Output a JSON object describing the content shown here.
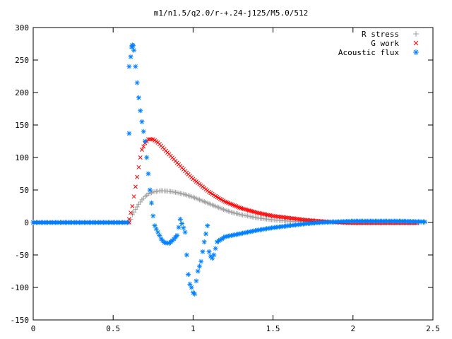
{
  "chart_data": {
    "type": "scatter",
    "title": "m1/n1.5/q2.0/r-+.24-j125/M5.0/512",
    "xlabel": "",
    "ylabel": "",
    "xlim": [
      0,
      2.5
    ],
    "ylim": [
      -150,
      300
    ],
    "x_ticks": [
      0,
      0.5,
      1,
      1.5,
      2,
      2.5
    ],
    "x_tick_labels": [
      "0",
      "0.5",
      "1",
      "1.5",
      "2",
      "2.5"
    ],
    "y_ticks": [
      -150,
      -100,
      -50,
      0,
      50,
      100,
      150,
      200,
      250,
      300
    ],
    "y_tick_labels": [
      "-150",
      "-100",
      "-50",
      "0",
      "50",
      "100",
      "150",
      "200",
      "250",
      "300"
    ],
    "grid": false,
    "legend_position": "top-right",
    "series": [
      {
        "name": "R stress",
        "marker": "+",
        "color": "#a0a0a0",
        "points": [
          [
            0.0,
            0
          ],
          [
            0.3,
            0
          ],
          [
            0.6,
            0
          ],
          [
            0.61,
            5
          ],
          [
            0.62,
            12
          ],
          [
            0.64,
            20
          ],
          [
            0.66,
            28
          ],
          [
            0.68,
            35
          ],
          [
            0.7,
            40
          ],
          [
            0.72,
            44
          ],
          [
            0.75,
            47
          ],
          [
            0.8,
            49
          ],
          [
            0.85,
            48
          ],
          [
            0.9,
            46
          ],
          [
            0.95,
            43
          ],
          [
            1.0,
            39
          ],
          [
            1.05,
            34
          ],
          [
            1.1,
            29
          ],
          [
            1.15,
            24
          ],
          [
            1.2,
            19
          ],
          [
            1.25,
            15
          ],
          [
            1.3,
            12
          ],
          [
            1.4,
            7
          ],
          [
            1.5,
            4
          ],
          [
            1.6,
            2
          ],
          [
            1.8,
            1
          ],
          [
            2.0,
            1
          ],
          [
            2.2,
            1
          ],
          [
            2.45,
            0
          ]
        ]
      },
      {
        "name": "G work",
        "marker": "x",
        "color": "#ff0000",
        "points": [
          [
            0.0,
            0
          ],
          [
            0.3,
            0
          ],
          [
            0.6,
            0
          ],
          [
            0.6,
            5
          ],
          [
            0.61,
            15
          ],
          [
            0.62,
            25
          ],
          [
            0.63,
            40
          ],
          [
            0.64,
            55
          ],
          [
            0.65,
            70
          ],
          [
            0.66,
            85
          ],
          [
            0.67,
            100
          ],
          [
            0.68,
            112
          ],
          [
            0.7,
            122
          ],
          [
            0.72,
            128
          ],
          [
            0.75,
            128
          ],
          [
            0.78,
            123
          ],
          [
            0.8,
            118
          ],
          [
            0.85,
            105
          ],
          [
            0.9,
            92
          ],
          [
            0.95,
            79
          ],
          [
            1.0,
            67
          ],
          [
            1.05,
            57
          ],
          [
            1.1,
            47
          ],
          [
            1.15,
            39
          ],
          [
            1.2,
            32
          ],
          [
            1.3,
            22
          ],
          [
            1.4,
            15
          ],
          [
            1.5,
            10
          ],
          [
            1.6,
            7
          ],
          [
            1.7,
            4
          ],
          [
            1.8,
            2
          ],
          [
            1.9,
            0
          ],
          [
            2.0,
            -1
          ],
          [
            2.2,
            -1
          ],
          [
            2.4,
            -1
          ]
        ]
      },
      {
        "name": "Acoustic flux",
        "marker": "*",
        "color": "#0080ff",
        "points": [
          [
            0.0,
            0
          ],
          [
            0.3,
            0
          ],
          [
            0.59,
            0
          ],
          [
            0.6,
            137
          ],
          [
            0.6,
            240
          ],
          [
            0.61,
            255
          ],
          [
            0.615,
            270
          ],
          [
            0.62,
            273
          ],
          [
            0.625,
            272
          ],
          [
            0.63,
            265
          ],
          [
            0.64,
            240
          ],
          [
            0.65,
            215
          ],
          [
            0.66,
            192
          ],
          [
            0.67,
            172
          ],
          [
            0.68,
            155
          ],
          [
            0.69,
            140
          ],
          [
            0.7,
            125
          ],
          [
            0.71,
            100
          ],
          [
            0.72,
            75
          ],
          [
            0.73,
            50
          ],
          [
            0.74,
            30
          ],
          [
            0.75,
            10
          ],
          [
            0.76,
            -5
          ],
          [
            0.78,
            -15
          ],
          [
            0.8,
            -25
          ],
          [
            0.82,
            -31
          ],
          [
            0.85,
            -32
          ],
          [
            0.87,
            -28
          ],
          [
            0.9,
            -20
          ],
          [
            0.92,
            5
          ],
          [
            0.95,
            -15
          ],
          [
            0.96,
            -50
          ],
          [
            0.97,
            -80
          ],
          [
            0.98,
            -95
          ],
          [
            0.99,
            -100
          ],
          [
            1.0,
            -108
          ],
          [
            1.01,
            -110
          ],
          [
            1.02,
            -90
          ],
          [
            1.03,
            -75
          ],
          [
            1.05,
            -60
          ],
          [
            1.07,
            -30
          ],
          [
            1.09,
            -5
          ],
          [
            1.1,
            -45
          ],
          [
            1.11,
            -52
          ],
          [
            1.12,
            -55
          ],
          [
            1.13,
            -50
          ],
          [
            1.15,
            -30
          ],
          [
            1.2,
            -22
          ],
          [
            1.3,
            -17
          ],
          [
            1.4,
            -12
          ],
          [
            1.5,
            -8
          ],
          [
            1.6,
            -5
          ],
          [
            1.7,
            -2
          ],
          [
            1.8,
            0
          ],
          [
            1.9,
            1
          ],
          [
            2.0,
            2
          ],
          [
            2.1,
            2
          ],
          [
            2.2,
            2
          ],
          [
            2.3,
            2
          ],
          [
            2.45,
            1
          ]
        ]
      }
    ]
  }
}
